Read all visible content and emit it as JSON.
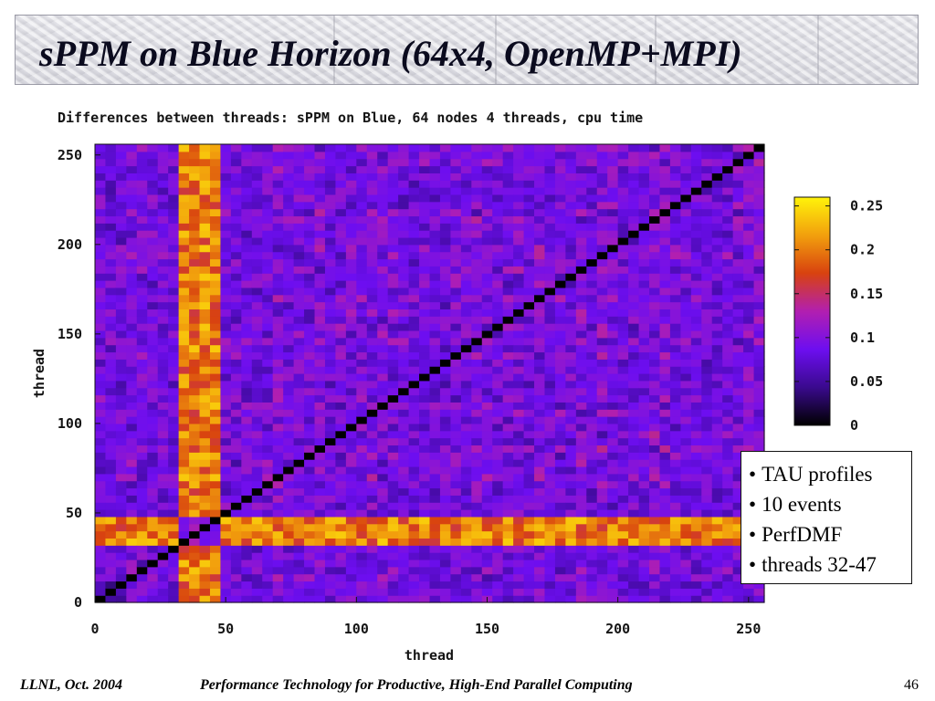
{
  "slide": {
    "title": "sPPM on Blue Horizon (64x4, OpenMP+MPI)",
    "bullets": [
      "TAU profiles",
      "10 events",
      "PerfDMF",
      "threads 32-47"
    ],
    "footer_left": "LLNL, Oct. 2004",
    "footer_center": "Performance Technology for Productive, High-End Parallel Computing",
    "page_number": "46"
  },
  "chart_data": {
    "type": "heatmap",
    "title": "Differences between threads: sPPM on Blue, 64 nodes 4 threads, cpu time",
    "xlabel": "thread",
    "ylabel": "thread",
    "xlim": [
      0,
      256
    ],
    "ylim": [
      0,
      256
    ],
    "x_ticks": [
      0,
      50,
      100,
      150,
      200,
      250
    ],
    "y_ticks": [
      0,
      50,
      100,
      150,
      200,
      250
    ],
    "cell_size": 4,
    "grid_size": 64,
    "diagonal_value": 0,
    "highlight_threads": [
      32,
      47
    ],
    "highlight_typical_value": 0.2,
    "background_typical_range": [
      0.05,
      0.13
    ],
    "colorbar": {
      "min": 0,
      "max": 0.26,
      "ticks": [
        0,
        0.05,
        0.1,
        0.15,
        0.2,
        0.25
      ],
      "tick_labels": [
        "0",
        "0.05",
        "0.1",
        "0.15",
        "0.2",
        "0.25"
      ],
      "colors": [
        "#000000",
        "#3a0a8e",
        "#6d0ef0",
        "#b21fb0",
        "#d8420f",
        "#f2a00d",
        "#fff30a"
      ]
    }
  }
}
